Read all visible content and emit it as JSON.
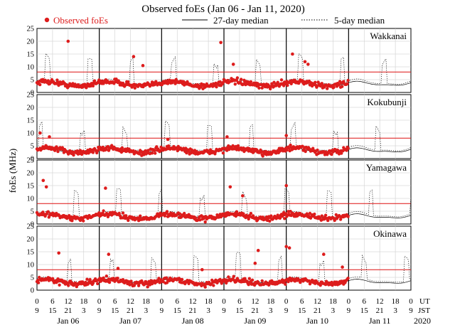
{
  "chart_data": {
    "type": "scatter",
    "title": "Observed foEs (Jan 06 - Jan 11, 2020)",
    "ylabel": "foEs (MHz)",
    "ylim": [
      0,
      25
    ],
    "yticks": [
      0,
      5,
      10,
      15,
      20,
      25
    ],
    "legend": {
      "observed": "Observed foEs",
      "median27": "27-day median",
      "median5": "5-day median"
    },
    "stations": [
      "Wakkanai",
      "Kokubunji",
      "Yamagawa",
      "Okinawa"
    ],
    "threshold_mhz": 8,
    "days": [
      "Jan 06",
      "Jan 07",
      "Jan 08",
      "Jan 09",
      "Jan 10",
      "Jan 11"
    ],
    "year": "2020",
    "ut_ticks": [
      "0",
      "6",
      "12",
      "18",
      "0",
      "6",
      "12",
      "18",
      "0",
      "6",
      "12",
      "18",
      "0",
      "6",
      "12",
      "18",
      "0",
      "6",
      "12",
      "18",
      "0",
      "6",
      "12",
      "18",
      "0"
    ],
    "jst_ticks": [
      "9",
      "15",
      "21",
      "3",
      "9",
      "15",
      "21",
      "3",
      "9",
      "15",
      "21",
      "3",
      "9",
      "15",
      "21",
      "3",
      "9",
      "15",
      "21",
      "3",
      "9",
      "15",
      "21",
      "3",
      "9"
    ],
    "ut_label": "UT",
    "jst_label": "JST",
    "observed_range_days": [
      0,
      5.0
    ],
    "outliers": {
      "Wakkanai": [
        [
          0.5,
          20
        ],
        [
          1.55,
          14
        ],
        [
          2.95,
          19.5
        ],
        [
          3.15,
          11
        ],
        [
          4.35,
          11
        ],
        [
          4.1,
          15
        ],
        [
          4.3,
          12
        ],
        [
          1.7,
          10.5
        ]
      ],
      "Kokubunji": [
        [
          0.05,
          10
        ],
        [
          0.2,
          8.5
        ],
        [
          3.05,
          8.5
        ],
        [
          4.0,
          9
        ],
        [
          2.1,
          7.5
        ]
      ],
      "Yamagawa": [
        [
          0.1,
          17
        ],
        [
          0.15,
          14.5
        ],
        [
          1.1,
          14
        ],
        [
          3.1,
          14.5
        ],
        [
          3.3,
          11
        ],
        [
          4.0,
          15
        ]
      ],
      "Okinawa": [
        [
          0.35,
          14.5
        ],
        [
          1.15,
          14
        ],
        [
          1.3,
          8.5
        ],
        [
          2.65,
          8
        ],
        [
          3.5,
          10.5
        ],
        [
          3.55,
          15.5
        ],
        [
          4.0,
          17
        ],
        [
          4.05,
          16.5
        ],
        [
          4.6,
          14
        ],
        [
          4.9,
          9
        ]
      ]
    }
  }
}
